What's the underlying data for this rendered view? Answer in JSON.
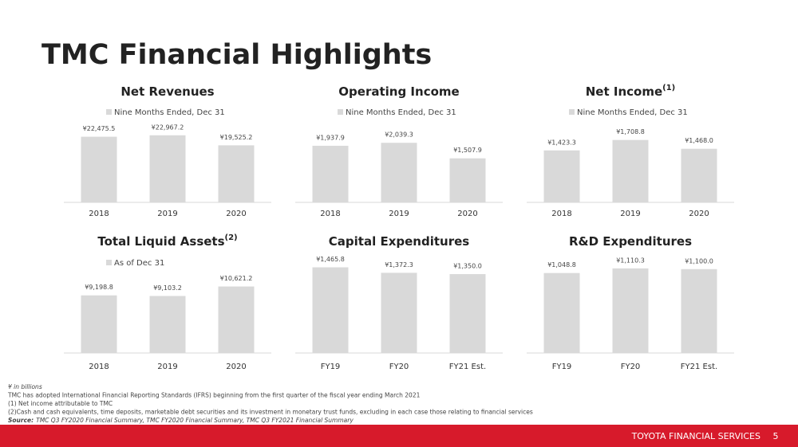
{
  "header": {
    "title": "TMC Financial Highlights"
  },
  "chart_data": [
    {
      "type": "bar",
      "title": "Net Revenues",
      "categories": [
        "2018",
        "2019",
        "2020"
      ],
      "series": [
        {
          "name": "Nine Months Ended, Dec 31",
          "color": "#d9d9d9",
          "values": [
            22475.5,
            22967.2,
            19525.2
          ],
          "value_labels": [
            "¥22,475.5",
            "¥22,967.2",
            "¥19,525.2"
          ]
        }
      ],
      "ylim": [
        0,
        30000
      ]
    },
    {
      "type": "bar",
      "title": "Operating Income",
      "categories": [
        "2018",
        "2019",
        "2020"
      ],
      "series": [
        {
          "name": "Nine Months Ended, Dec 31",
          "color": "#d9d9d9",
          "values": [
            1937.9,
            2039.3,
            1507.9
          ],
          "value_labels": [
            "¥1,937.9",
            "¥2,039.3",
            "¥1,507.9"
          ]
        }
      ],
      "ylim": [
        0,
        3000
      ]
    },
    {
      "type": "bar",
      "title": "Net Income",
      "title_sup": "(1)",
      "categories": [
        "2018",
        "2019",
        "2020"
      ],
      "series": [
        {
          "name": "Nine Months Ended, Dec 31",
          "color": "#d9d9d9",
          "values": [
            1423.3,
            1708.8,
            1468.0
          ],
          "value_labels": [
            "¥1,423.3",
            "¥1,708.8",
            "¥1,468.0"
          ]
        }
      ],
      "ylim": [
        0,
        2400
      ]
    },
    {
      "type": "bar",
      "title": "Total Liquid Assets",
      "title_sup": "(2)",
      "categories": [
        "2018",
        "2019",
        "2020"
      ],
      "series": [
        {
          "name": "As of Dec 31",
          "color": "#d9d9d9",
          "values": [
            9198.8,
            9103.2,
            10621.2
          ],
          "value_labels": [
            "¥9,198.8",
            "¥9,103.2",
            "¥10,621.2"
          ]
        }
      ],
      "ylim": [
        0,
        14000
      ]
    },
    {
      "type": "bar",
      "title": "Capital Expenditures",
      "categories": [
        "FY19",
        "FY20",
        "FY21 Est."
      ],
      "series": [
        {
          "color": "#d9d9d9",
          "values": [
            1465.8,
            1372.3,
            1350.0
          ],
          "value_labels": [
            "¥1,465.8",
            "¥1,372.3",
            "¥1,350.0"
          ]
        }
      ],
      "ylim": [
        0,
        1500
      ]
    },
    {
      "type": "bar",
      "title": "R&D Expenditures",
      "categories": [
        "FY19",
        "FY20",
        "FY21 Est."
      ],
      "series": [
        {
          "color": "#d9d9d9",
          "values": [
            1048.8,
            1110.3,
            1100.0
          ],
          "value_labels": [
            "¥1,048.8",
            "¥1,110.3",
            "¥1,100.0"
          ]
        }
      ],
      "ylim": [
        0,
        1150
      ]
    }
  ],
  "footnotes": [
    "¥ in billions",
    "TMC has adopted International Financial Reporting Standards (IFRS) beginning from the first quarter of the fiscal year ending March 2021",
    "(1) Net income attributable to TMC",
    "(2)Cash and cash equivalents, time deposits, marketable debt securities and its investment in monetary trust funds, excluding in each case those relating to financial services"
  ],
  "source": {
    "label": "Source:",
    "text": "TMC Q3 FY2020 Financial Summary, TMC FY2020 Financial Summary, TMC Q3 FY2021 Financial Summary"
  },
  "footer": {
    "text": "TOYOTA FINANCIAL SERVICES",
    "page": "5"
  }
}
